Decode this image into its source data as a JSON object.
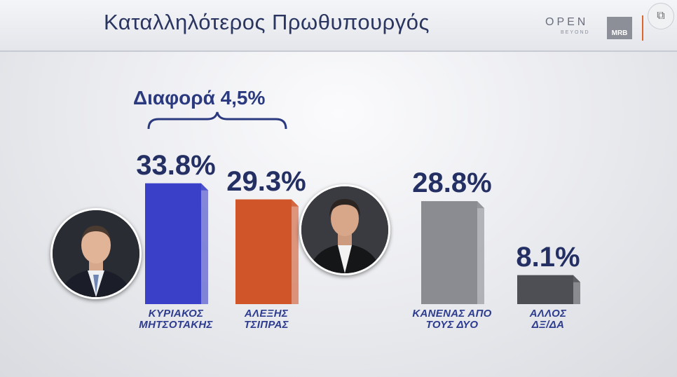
{
  "header": {
    "title": "Καταλληλότερος Πρωθυπουργός",
    "logo_open": "OPEN",
    "logo_beyond": "BEYOND",
    "logo_mrb": "MRB"
  },
  "colors": {
    "accent_text": "#2b3a7e",
    "bar_mitsotakis": "#3a40c8",
    "bar_tsipras": "#d0562a",
    "bar_none": "#8a8c92",
    "bar_other": "#4d4f55",
    "logo_accent": "#e0652c"
  },
  "chart_data": {
    "type": "bar",
    "title": "Καταλληλότερος Πρωθυπουργός",
    "annotation": "Διαφορά 4,5%",
    "categories": [
      "ΚΥΡΙΑΚΟΣ ΜΗΤΣΟΤΑΚΗΣ",
      "ΑΛΕΞΗΣ ΤΣΙΠΡΑΣ",
      "ΚΑΝΕΝΑΣ ΑΠΟ ΤΟΥΣ ΔΥΟ",
      "ΑΛΛΟΣ ΔΞ/ΔΑ"
    ],
    "category_lines": [
      [
        "ΚΥΡΙΑΚΟΣ",
        "ΜΗΤΣΟΤΑΚΗΣ"
      ],
      [
        "ΑΛΕΞΗΣ",
        "ΤΣΙΠΡΑΣ"
      ],
      [
        "ΚΑΝΕΝΑΣ ΑΠΟ",
        "ΤΟΥΣ ΔΥΟ"
      ],
      [
        "ΑΛΛΟΣ",
        "ΔΞ/ΔΑ"
      ]
    ],
    "values": [
      33.8,
      29.3,
      28.8,
      8.1
    ],
    "value_labels": [
      "33.8%",
      "29.3%",
      "28.8%",
      "8.1%"
    ],
    "bar_colors": [
      "#3a40c8",
      "#d0562a",
      "#8a8c92",
      "#4d4f55"
    ],
    "xlabel": "",
    "ylabel": "",
    "grid": false
  }
}
